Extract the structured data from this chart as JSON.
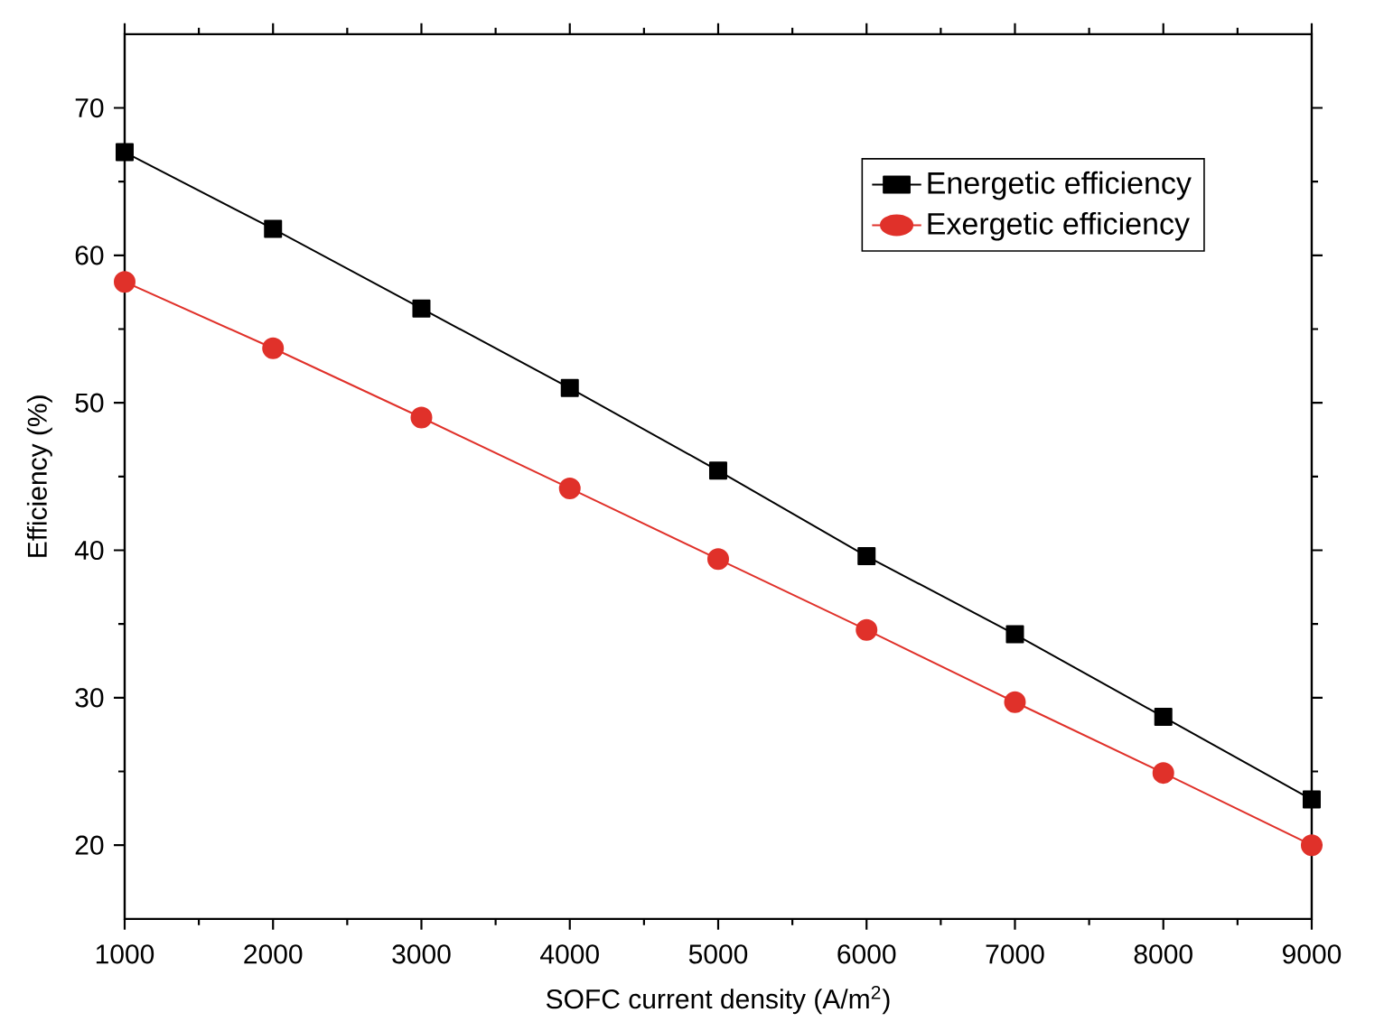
{
  "chart_data": {
    "type": "line",
    "xlabel": "SOFC current density (A/m$^{2}$)",
    "ylabel": "Efficiency (%)",
    "x": [
      1000,
      2000,
      3000,
      4000,
      5000,
      6000,
      7000,
      8000,
      9000
    ],
    "series": [
      {
        "name": "Energetic efficiency",
        "color": "#000000",
        "marker": "square",
        "values": [
          67.0,
          61.8,
          56.4,
          51.0,
          45.4,
          39.6,
          34.3,
          28.7,
          23.1
        ]
      },
      {
        "name": "Exergetic efficiency",
        "color": "#e0312a",
        "marker": "circle",
        "values": [
          58.2,
          53.7,
          49.0,
          44.2,
          39.4,
          34.6,
          29.7,
          24.9,
          20.0
        ]
      }
    ],
    "xlim": [
      1000,
      9000
    ],
    "xticks": [
      1000,
      2000,
      3000,
      4000,
      5000,
      6000,
      7000,
      8000,
      9000
    ],
    "ylim": [
      15,
      75
    ],
    "yticks": [
      20,
      30,
      40,
      50,
      60,
      70
    ],
    "grid": false,
    "legend": "top right",
    "line_style": "solid"
  }
}
